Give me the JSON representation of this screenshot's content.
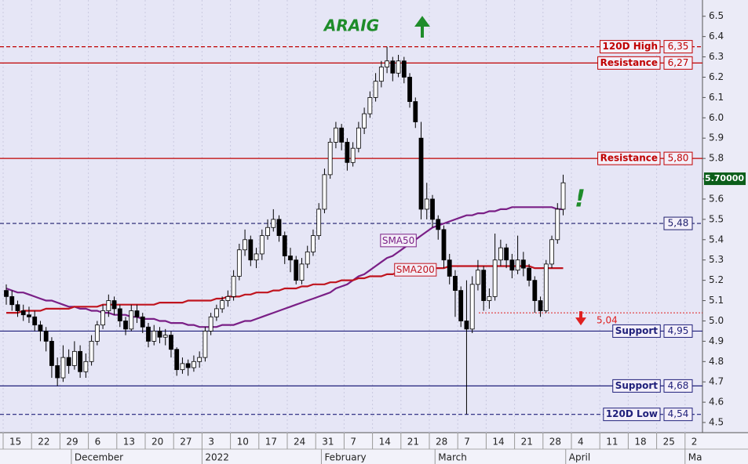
{
  "chart_data": {
    "type": "candlestick",
    "title": "ARAIG",
    "categories": [
      "15",
      null,
      null,
      null,
      null,
      "22",
      null,
      null,
      null,
      null,
      "29",
      null,
      null,
      null,
      null,
      "6",
      null,
      null,
      null,
      null,
      "13",
      null,
      null,
      null,
      null,
      "20",
      null,
      null,
      null,
      null,
      "27",
      null,
      null,
      null,
      null,
      "3",
      null,
      null,
      null,
      null,
      "10",
      null,
      null,
      null,
      null,
      "17",
      null,
      null,
      null,
      null,
      "24",
      null,
      null,
      null,
      null,
      "31",
      null,
      null,
      null,
      null,
      "7",
      null,
      null,
      null,
      null,
      "14",
      null,
      null,
      null,
      null,
      "21",
      null,
      null,
      null,
      null,
      "28",
      null,
      null,
      null,
      null,
      "7",
      null,
      null,
      null,
      null,
      "14",
      null,
      null,
      null,
      null,
      "21",
      null,
      null,
      null,
      null,
      "28",
      null,
      null,
      null,
      null,
      "4",
      null,
      null,
      null,
      null,
      "11",
      null,
      null,
      null,
      null,
      "18",
      null,
      null,
      null,
      null,
      "25",
      null,
      null,
      null,
      null,
      "2",
      null,
      null
    ],
    "months": [
      null,
      null,
      null,
      null,
      null,
      null,
      null,
      null,
      null,
      null,
      null,
      null,
      "December",
      null,
      null,
      null,
      null,
      null,
      null,
      null,
      null,
      null,
      null,
      null,
      null,
      null,
      null,
      null,
      null,
      null,
      null,
      null,
      null,
      null,
      null,
      "2022",
      null,
      null,
      null,
      null,
      null,
      null,
      null,
      null,
      null,
      null,
      null,
      null,
      null,
      null,
      null,
      null,
      null,
      null,
      null,
      null,
      "February",
      null,
      null,
      null,
      null,
      null,
      null,
      null,
      null,
      null,
      null,
      null,
      null,
      null,
      null,
      null,
      null,
      null,
      null,
      null,
      "March",
      null,
      null,
      null,
      null,
      null,
      null,
      null,
      null,
      null,
      null,
      null,
      null,
      null,
      null,
      null,
      null,
      null,
      null,
      null,
      null,
      null,
      null,
      "April",
      null,
      null,
      null,
      null,
      null,
      null,
      null,
      null,
      null,
      null,
      null,
      null,
      null,
      null,
      null,
      null,
      null,
      null,
      null,
      null,
      "Ma",
      null,
      null
    ],
    "open": [
      5.15,
      5.12,
      5.08,
      5.05,
      5.03,
      5.02,
      4.98,
      4.95,
      4.9,
      4.78,
      4.72,
      4.82,
      4.78,
      4.85,
      4.75,
      4.8,
      4.9,
      4.98,
      5.05,
      5.1,
      5.06,
      5.0,
      4.96,
      5.05,
      5.02,
      4.97,
      4.9,
      4.95,
      4.92,
      4.93,
      4.86,
      4.76,
      4.79,
      4.77,
      4.8,
      4.82,
      4.95,
      5.02,
      5.06,
      5.1,
      5.12,
      5.22,
      5.35,
      5.4,
      5.3,
      5.33,
      5.42,
      5.46,
      5.5,
      5.42,
      5.32,
      5.3,
      5.2,
      5.28,
      5.34,
      5.42,
      5.55,
      5.72,
      5.88,
      5.95,
      5.88,
      5.78,
      5.85,
      5.95,
      6.02,
      6.1,
      6.18,
      6.25,
      6.28,
      6.22,
      6.28,
      6.2,
      6.08,
      5.9,
      5.55,
      5.6,
      5.5,
      5.45,
      5.3,
      5.22,
      5.15,
      5.0,
      4.96,
      5.18,
      5.25,
      5.1,
      5.12,
      5.3,
      5.36,
      5.3,
      5.25,
      5.3,
      5.26,
      5.2,
      5.1,
      5.05,
      5.28,
      5.4,
      5.55,
      null,
      null,
      null,
      null,
      null,
      null,
      null,
      null,
      null,
      null,
      null,
      null,
      null,
      null,
      null,
      null,
      null,
      null,
      null,
      null,
      null,
      null,
      null,
      null
    ],
    "high": [
      5.18,
      5.15,
      5.1,
      5.08,
      5.07,
      5.05,
      5.0,
      4.97,
      4.92,
      4.82,
      4.88,
      4.86,
      4.9,
      4.88,
      4.84,
      4.93,
      5.0,
      5.08,
      5.13,
      5.12,
      5.08,
      5.02,
      5.08,
      5.08,
      5.04,
      4.99,
      4.98,
      4.97,
      4.96,
      4.95,
      4.87,
      4.82,
      4.81,
      4.83,
      4.85,
      4.97,
      5.04,
      5.08,
      5.12,
      5.15,
      5.25,
      5.38,
      5.45,
      5.42,
      5.36,
      5.45,
      5.5,
      5.55,
      5.52,
      5.44,
      5.36,
      5.32,
      5.31,
      5.37,
      5.45,
      5.58,
      5.75,
      5.9,
      5.98,
      5.97,
      5.9,
      5.88,
      5.98,
      6.05,
      6.13,
      6.22,
      6.28,
      6.35,
      6.3,
      6.31,
      6.3,
      6.22,
      6.1,
      5.98,
      5.68,
      5.62,
      5.52,
      5.47,
      5.33,
      5.25,
      5.17,
      5.2,
      5.22,
      5.3,
      5.27,
      5.16,
      5.43,
      5.4,
      5.38,
      5.33,
      5.42,
      5.34,
      5.28,
      5.22,
      5.12,
      5.3,
      5.42,
      5.58,
      5.72,
      null,
      null,
      null,
      null,
      null,
      null,
      null,
      null,
      null,
      null,
      null,
      null,
      null,
      null,
      null,
      null,
      null,
      null,
      null,
      null,
      null,
      null,
      null,
      null
    ],
    "low": [
      5.08,
      5.05,
      5.02,
      5.0,
      4.99,
      4.95,
      4.9,
      4.85,
      4.72,
      4.68,
      4.7,
      4.74,
      4.76,
      4.72,
      4.72,
      4.78,
      4.88,
      4.96,
      5.02,
      5.03,
      4.97,
      4.93,
      4.95,
      4.99,
      4.94,
      4.87,
      4.88,
      4.89,
      4.88,
      4.82,
      4.73,
      4.74,
      4.73,
      4.75,
      4.77,
      4.8,
      4.93,
      5.0,
      5.04,
      5.07,
      5.1,
      5.2,
      5.32,
      5.27,
      5.26,
      5.3,
      5.4,
      5.44,
      5.39,
      5.28,
      5.24,
      5.18,
      5.18,
      5.26,
      5.32,
      5.4,
      5.53,
      5.7,
      5.85,
      5.84,
      5.74,
      5.76,
      5.83,
      5.92,
      6.0,
      6.08,
      6.15,
      6.22,
      6.18,
      6.2,
      6.17,
      6.05,
      5.95,
      5.5,
      5.5,
      5.46,
      5.4,
      5.26,
      5.18,
      5.02,
      4.97,
      4.54,
      4.94,
      5.15,
      5.05,
      5.06,
      5.1,
      5.27,
      5.26,
      5.21,
      5.23,
      5.22,
      5.17,
      5.04,
      5.02,
      5.04,
      5.26,
      5.38,
      5.52,
      null,
      null,
      null,
      null,
      null,
      null,
      null,
      null,
      null,
      null,
      null,
      null,
      null,
      null,
      null,
      null,
      null,
      null,
      null,
      null,
      null,
      null,
      null,
      null
    ],
    "close": [
      5.12,
      5.08,
      5.05,
      5.03,
      5.02,
      4.98,
      4.95,
      4.9,
      4.78,
      4.72,
      4.82,
      4.78,
      4.85,
      4.75,
      4.8,
      4.9,
      4.98,
      5.05,
      5.1,
      5.06,
      5.0,
      4.96,
      5.05,
      5.02,
      4.97,
      4.9,
      4.95,
      4.92,
      4.93,
      4.86,
      4.76,
      4.79,
      4.77,
      4.8,
      4.82,
      4.95,
      5.02,
      5.06,
      5.1,
      5.12,
      5.22,
      5.35,
      5.4,
      5.3,
      5.33,
      5.42,
      5.46,
      5.5,
      5.42,
      5.32,
      5.3,
      5.2,
      5.28,
      5.34,
      5.42,
      5.55,
      5.72,
      5.88,
      5.95,
      5.88,
      5.78,
      5.85,
      5.95,
      6.02,
      6.1,
      6.18,
      6.25,
      6.28,
      6.22,
      6.28,
      6.2,
      6.08,
      5.98,
      5.55,
      5.6,
      5.5,
      5.45,
      5.3,
      5.22,
      5.15,
      5.0,
      4.96,
      5.18,
      5.25,
      5.1,
      5.12,
      5.3,
      5.36,
      5.3,
      5.25,
      5.3,
      5.26,
      5.2,
      5.1,
      5.05,
      5.28,
      5.4,
      5.55,
      5.68,
      null,
      null,
      null,
      null,
      null,
      null,
      null,
      null,
      null,
      null,
      null,
      null,
      null,
      null,
      null,
      null,
      null,
      null,
      null,
      null,
      null,
      null,
      null,
      null
    ],
    "indicators": [
      {
        "name": "SMA50",
        "color": "#7a1f86",
        "values": [
          5.16,
          5.15,
          5.14,
          5.14,
          5.13,
          5.12,
          5.11,
          5.1,
          5.1,
          5.09,
          5.08,
          5.07,
          5.07,
          5.06,
          5.06,
          5.05,
          5.05,
          5.04,
          5.04,
          5.03,
          5.03,
          5.03,
          5.02,
          5.02,
          5.01,
          5.01,
          5.01,
          5.0,
          5.0,
          4.99,
          4.99,
          4.99,
          4.98,
          4.98,
          4.97,
          4.97,
          4.97,
          4.97,
          4.98,
          4.98,
          4.98,
          4.99,
          5.0,
          5.0,
          5.01,
          5.02,
          5.03,
          5.04,
          5.05,
          5.06,
          5.07,
          5.08,
          5.09,
          5.1,
          5.11,
          5.12,
          5.13,
          5.14,
          5.16,
          5.17,
          5.18,
          5.2,
          5.22,
          5.23,
          5.25,
          5.27,
          5.29,
          5.31,
          5.32,
          5.34,
          5.36,
          5.38,
          5.4,
          5.42,
          5.44,
          5.46,
          5.47,
          5.48,
          5.49,
          5.5,
          5.51,
          5.52,
          5.52,
          5.53,
          5.53,
          5.54,
          5.54,
          5.55,
          5.55,
          5.56,
          5.56,
          5.56,
          5.56,
          5.56,
          5.56,
          5.56,
          5.56,
          5.55,
          5.55,
          null,
          null,
          null,
          null,
          null,
          null,
          null,
          null,
          null,
          null,
          null,
          null,
          null,
          null,
          null,
          null,
          null,
          null,
          null,
          null,
          null,
          null,
          null,
          null
        ]
      },
      {
        "name": "SMA200",
        "color": "#c0141e",
        "values": [
          5.04,
          5.04,
          5.04,
          5.05,
          5.05,
          5.05,
          5.05,
          5.06,
          5.06,
          5.06,
          5.06,
          5.06,
          5.07,
          5.07,
          5.07,
          5.07,
          5.07,
          5.08,
          5.08,
          5.08,
          5.08,
          5.08,
          5.08,
          5.08,
          5.08,
          5.08,
          5.08,
          5.09,
          5.09,
          5.09,
          5.09,
          5.09,
          5.1,
          5.1,
          5.1,
          5.1,
          5.1,
          5.11,
          5.11,
          5.12,
          5.12,
          5.12,
          5.13,
          5.13,
          5.14,
          5.14,
          5.14,
          5.15,
          5.15,
          5.16,
          5.16,
          5.16,
          5.17,
          5.17,
          5.18,
          5.18,
          5.18,
          5.19,
          5.19,
          5.2,
          5.2,
          5.2,
          5.21,
          5.21,
          5.22,
          5.22,
          5.22,
          5.23,
          5.23,
          5.24,
          5.24,
          5.24,
          5.25,
          5.25,
          5.26,
          5.26,
          5.26,
          5.26,
          5.27,
          5.27,
          5.27,
          5.27,
          5.27,
          5.27,
          5.27,
          5.27,
          5.27,
          5.27,
          5.27,
          5.27,
          5.27,
          5.27,
          5.27,
          5.26,
          5.26,
          5.26,
          5.26,
          5.26,
          5.26,
          null,
          null,
          null,
          null,
          null,
          null,
          null,
          null,
          null,
          null,
          null,
          null,
          null,
          null,
          null,
          null,
          null,
          null,
          null,
          null,
          null,
          null,
          null,
          null
        ]
      }
    ],
    "levels": [
      {
        "name": "120D High",
        "value": 6.35,
        "value_label": "6,35",
        "color": "#c00000",
        "style": "dashed"
      },
      {
        "name": "Resistance",
        "value": 6.27,
        "value_label": "6,27",
        "color": "#c00000",
        "style": "solid"
      },
      {
        "name": "Resistance",
        "value": 5.8,
        "value_label": "5,80",
        "color": "#c00000",
        "style": "solid"
      },
      {
        "value": 5.48,
        "value_label": "5,48",
        "color": "#1f1f6e",
        "style": "dashed"
      },
      {
        "name": "Support",
        "value": 4.95,
        "value_label": "4,95",
        "color": "#1f1f7a",
        "style": "solid"
      },
      {
        "name": "Support",
        "value": 4.68,
        "value_label": "4,68",
        "color": "#1f1f7a",
        "style": "solid"
      },
      {
        "name": "120D Low",
        "value": 4.54,
        "value_label": "4,54",
        "color": "#1f1f7a",
        "style": "dashed"
      }
    ],
    "stop": {
      "value": 5.04,
      "label": "5,04",
      "color": "#e02020"
    },
    "last_price": {
      "value": 5.7,
      "label": "5.70000",
      "color": "#0b5e1a"
    },
    "signal": "!",
    "signal_color": "#1e8c2a",
    "ylim": [
      4.45,
      6.58
    ],
    "yticks": [
      {
        "value": 4.5,
        "label": "4.5"
      },
      4.6,
      4.7,
      4.8,
      4.9,
      {
        "value": 5,
        "label": "5.0"
      },
      5.1,
      5.2,
      5.3,
      5.4,
      5.5,
      5.6,
      5.7,
      5.8,
      5.9,
      {
        "value": 6,
        "label": "6.0"
      },
      6.1,
      6.2,
      6.3,
      6.4,
      6.5
    ],
    "grid": true
  }
}
